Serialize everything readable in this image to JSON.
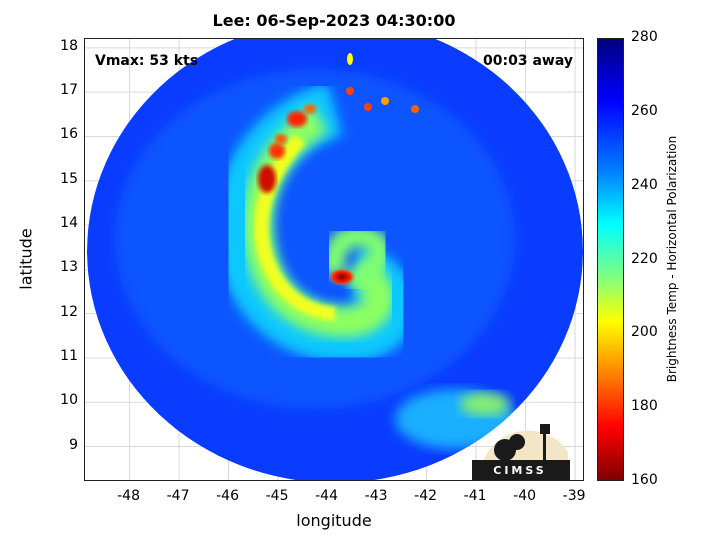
{
  "title": "Lee: 06-Sep-2023 04:30:00",
  "annotations": {
    "vmax": "Vmax: 53 kts",
    "time_away": "00:03 away"
  },
  "logo": {
    "text": "CIMSS"
  },
  "colors": {
    "plot_border": "#222222",
    "grid": "#d9d9d9",
    "eye_core": "#b00000"
  },
  "chart_data": {
    "type": "heatmap",
    "title": "Lee: 06-Sep-2023 04:30:00",
    "xlabel": "longitude",
    "ylabel": "latitude",
    "xlim": [
      -48.9,
      -38.8
    ],
    "ylim": [
      8.2,
      18.2
    ],
    "x_ticks": [
      "-48",
      "-47",
      "-46",
      "-45",
      "-44",
      "-43",
      "-42",
      "-41",
      "-40",
      "-39"
    ],
    "y_ticks": [
      "18",
      "17",
      "16",
      "15",
      "14",
      "13",
      "12",
      "11",
      "10",
      "9"
    ],
    "grid": true,
    "colorbar": {
      "label": "Brightness Temp - Horizontal Polarization",
      "range": [
        160,
        280
      ],
      "ticks": [
        "280",
        "260",
        "240",
        "220",
        "200",
        "180",
        "160"
      ],
      "colormap": "jet"
    },
    "storm_center": {
      "lon": -43.5,
      "lat": 12.9
    }
  }
}
